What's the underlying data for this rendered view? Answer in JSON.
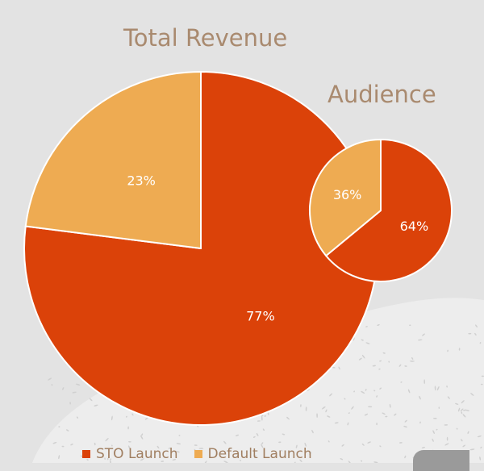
{
  "colors": {
    "sto_launch": "#db4209",
    "default_launch": "#eeab52",
    "title_text": "#a98a6f",
    "legend_text": "#a07e60"
  },
  "chart_data": [
    {
      "type": "pie",
      "title": "Total Revenue",
      "slices": [
        {
          "name": "STO Launch",
          "value": 77,
          "label": "77%",
          "color": "#db4209"
        },
        {
          "name": "Default Launch",
          "value": 23,
          "label": "23%",
          "color": "#eeab52"
        }
      ]
    },
    {
      "type": "pie",
      "title": "Audience",
      "slices": [
        {
          "name": "STO Launch",
          "value": 64,
          "label": "64%",
          "color": "#db4209"
        },
        {
          "name": "Default Launch",
          "value": 36,
          "label": "36%",
          "color": "#eeab52"
        }
      ]
    }
  ],
  "legend": {
    "placement": "bottom-left",
    "items": [
      {
        "label": "STO Launch",
        "color": "#db4209"
      },
      {
        "label": "Default Launch",
        "color": "#eeab52"
      }
    ]
  }
}
